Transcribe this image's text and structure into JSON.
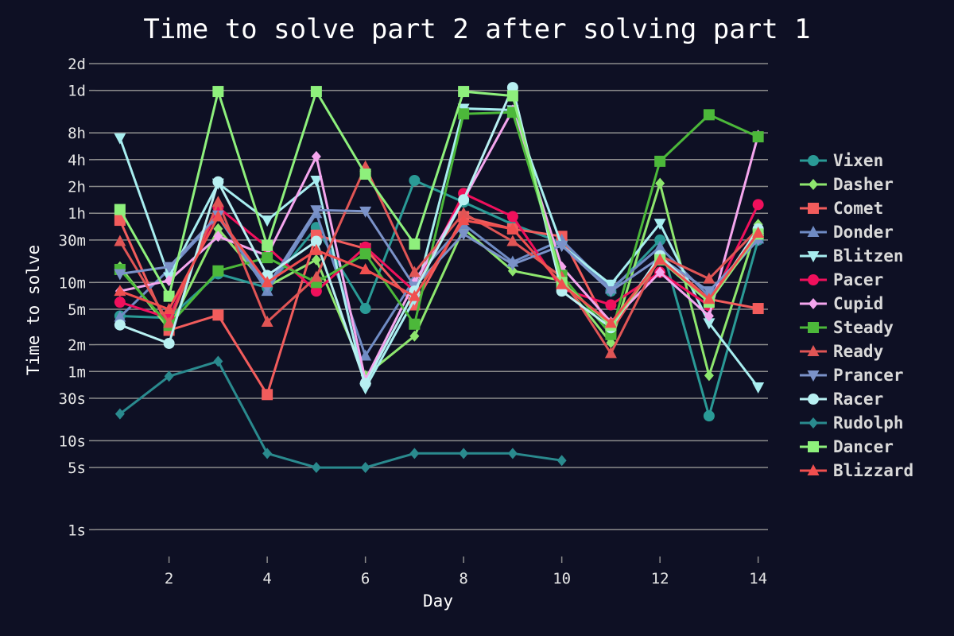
{
  "chart_data": {
    "type": "line",
    "title": "Time to solve part 2 after solving part 1",
    "xlabel": "Day",
    "ylabel": "Time to solve",
    "yscale": "log",
    "xlim": [
      0.5,
      14.2
    ],
    "x_ticks": [
      2,
      4,
      6,
      8,
      10,
      12,
      14
    ],
    "y_ticks": [
      {
        "label": "1s",
        "seconds": 1
      },
      {
        "label": "5s",
        "seconds": 5
      },
      {
        "label": "10s",
        "seconds": 10
      },
      {
        "label": "30s",
        "seconds": 30
      },
      {
        "label": "1m",
        "seconds": 60
      },
      {
        "label": "2m",
        "seconds": 120
      },
      {
        "label": "5m",
        "seconds": 300
      },
      {
        "label": "10m",
        "seconds": 600
      },
      {
        "label": "30m",
        "seconds": 1800
      },
      {
        "label": "1h",
        "seconds": 3600
      },
      {
        "label": "2h",
        "seconds": 7200
      },
      {
        "label": "4h",
        "seconds": 14400
      },
      {
        "label": "8h",
        "seconds": 28800
      },
      {
        "label": "1d",
        "seconds": 86400
      },
      {
        "label": "2d",
        "seconds": 172800
      }
    ],
    "ylim_seconds": [
      0.5,
      172800
    ],
    "value_unit": "seconds",
    "grid": true,
    "legend_position": "right",
    "series": [
      {
        "name": "Vixen",
        "color": "#2a9a96",
        "marker": "circle",
        "x": [
          1,
          2,
          3,
          4,
          5,
          6,
          7,
          8,
          9,
          10,
          11,
          12,
          13,
          14
        ],
        "y": [
          252,
          240,
          750,
          525,
          2490,
          306,
          8400,
          4800,
          2700,
          1680,
          480,
          1800,
          19,
          1800
        ]
      },
      {
        "name": "Dasher",
        "color": "#8ee66e",
        "marker": "diamond",
        "x": [
          1,
          2,
          3,
          4,
          5,
          6,
          7,
          8,
          9,
          10,
          11,
          12,
          13,
          14
        ],
        "y": [
          900,
          180,
          2400,
          540,
          1080,
          54,
          150,
          2400,
          810,
          630,
          126,
          7800,
          54,
          2700
        ]
      },
      {
        "name": "Comet",
        "color": "#f25c5c",
        "marker": "square",
        "x": [
          1,
          2,
          3,
          4,
          5,
          6,
          7,
          8,
          9,
          10,
          11,
          12,
          13,
          14
        ],
        "y": [
          3000,
          174,
          258,
          33,
          2040,
          1440,
          336,
          3300,
          2400,
          1980,
          168,
          1200,
          390,
          306
        ]
      },
      {
        "name": "Donder",
        "color": "#6f8bc4",
        "marker": "triangle-up",
        "x": [
          1,
          2,
          3,
          4,
          5,
          6,
          7,
          8,
          9,
          10,
          11,
          12,
          13,
          14
        ],
        "y": [
          246,
          840,
          3300,
          480,
          3600,
          90,
          660,
          2700,
          1020,
          1800,
          510,
          1500,
          420,
          1860
        ]
      },
      {
        "name": "Blitzen",
        "color": "#a8eef0",
        "marker": "triangle-down",
        "x": [
          1,
          2,
          3,
          4,
          5,
          6,
          7,
          8,
          9,
          10,
          11,
          12,
          13,
          14
        ],
        "y": [
          25200,
          690,
          7800,
          3000,
          8400,
          39,
          390,
          54000,
          52000,
          1560,
          570,
          2760,
          210,
          40
        ]
      },
      {
        "name": "Pacer",
        "color": "#f0105c",
        "marker": "circle",
        "x": [
          1,
          2,
          3,
          4,
          5,
          6,
          7,
          8,
          9,
          10,
          11,
          12,
          13,
          14
        ],
        "y": [
          360,
          240,
          4200,
          1500,
          480,
          1500,
          480,
          6000,
          3300,
          510,
          336,
          780,
          330,
          4500
        ]
      },
      {
        "name": "Cupid",
        "color": "#f5a6ee",
        "marker": "diamond",
        "x": [
          1,
          2,
          3,
          4,
          5,
          6,
          7,
          8,
          9,
          10,
          11,
          12,
          13,
          14
        ],
        "y": [
          480,
          630,
          1980,
          1200,
          15600,
          48,
          600,
          5100,
          52000,
          900,
          216,
          780,
          252,
          27000
        ]
      },
      {
        "name": "Steady",
        "color": "#4cb83a",
        "marker": "square",
        "x": [
          1,
          2,
          3,
          4,
          5,
          6,
          7,
          8,
          9,
          10,
          11,
          12,
          13,
          14
        ],
        "y": [
          840,
          198,
          810,
          1140,
          600,
          1260,
          204,
          47000,
          49000,
          720,
          156,
          13800,
          46000,
          26000
        ]
      },
      {
        "name": "Ready",
        "color": "#e05555",
        "marker": "triangle-up",
        "x": [
          1,
          2,
          3,
          4,
          5,
          6,
          7,
          8,
          9,
          10,
          11,
          12,
          13,
          14
        ],
        "y": [
          1740,
          210,
          4800,
          216,
          690,
          12000,
          780,
          3600,
          1740,
          690,
          96,
          1200,
          660,
          2400
        ]
      },
      {
        "name": "Prancer",
        "color": "#7b92c9",
        "marker": "triangle-down",
        "x": [
          1,
          2,
          3,
          4,
          5,
          6,
          7,
          8,
          9,
          10,
          11,
          12,
          13,
          14
        ],
        "y": [
          750,
          900,
          3420,
          540,
          3900,
          3780,
          540,
          2100,
          960,
          1560,
          480,
          1140,
          480,
          1800
        ]
      },
      {
        "name": "Racer",
        "color": "#b8f0f2",
        "marker": "circle",
        "x": [
          1,
          2,
          3,
          4,
          5,
          6,
          7,
          8,
          9,
          10,
          11,
          12,
          13,
          14
        ],
        "y": [
          200,
          124,
          8100,
          720,
          1740,
          44,
          480,
          5100,
          93000,
          480,
          186,
          1200,
          360,
          2400
        ]
      },
      {
        "name": "Rudolph",
        "color": "#2a8a8e",
        "marker": "diamond",
        "x": [
          1,
          2,
          3,
          4,
          5,
          6,
          7,
          8,
          9,
          10
        ],
        "y": [
          20,
          53,
          78,
          7.2,
          5,
          5,
          7.2,
          7.2,
          7.2,
          6
        ]
      },
      {
        "name": "Dancer",
        "color": "#8ef07c",
        "marker": "square",
        "x": [
          1,
          2,
          3,
          4,
          5,
          6,
          7,
          8,
          9,
          10,
          11,
          12,
          13,
          14
        ],
        "y": [
          3960,
          420,
          84000,
          1560,
          84000,
          9900,
          1620,
          84000,
          75000,
          600,
          198,
          1080,
          360,
          2100
        ]
      },
      {
        "name": "Blizzard",
        "color": "#f04f4f",
        "marker": "triangle-up",
        "x": [
          1,
          2,
          3,
          4,
          5,
          6,
          7,
          8,
          9,
          10,
          11,
          12,
          13,
          14
        ],
        "y": [
          480,
          300,
          3300,
          600,
          1380,
          840,
          420,
          3000,
          2400,
          570,
          210,
          1080,
          390,
          2160
        ]
      }
    ]
  }
}
